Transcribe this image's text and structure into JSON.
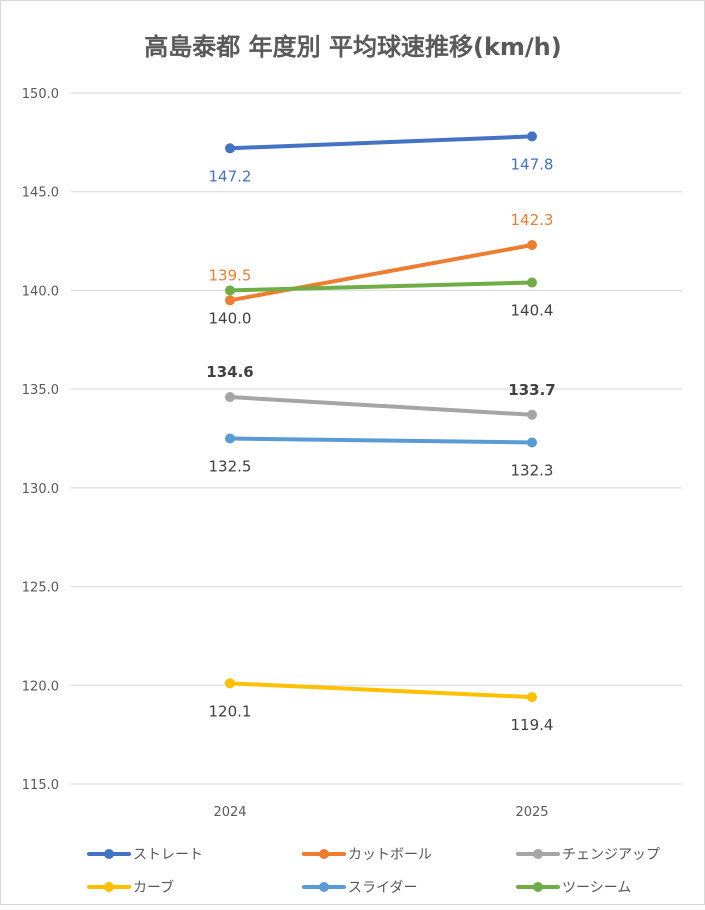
{
  "chart_data": {
    "type": "line",
    "title": "高島泰都 年度別 平均球速推移(km/h)",
    "xlabel": "",
    "ylabel": "",
    "categories": [
      "2024",
      "2025"
    ],
    "ylim": [
      115,
      150
    ],
    "yticks": [
      "150.0",
      "145.0",
      "140.0",
      "135.0",
      "130.0",
      "125.0",
      "120.0",
      "115.0"
    ],
    "ytick_values": [
      150,
      145,
      140,
      135,
      130,
      125,
      120,
      115
    ],
    "grid": true,
    "legend_position": "bottom",
    "series": [
      {
        "name": "ストレート",
        "values": [
          147.2,
          147.8
        ],
        "labels": [
          "147.2",
          "147.8"
        ],
        "color": "#4472C4",
        "label_color": "#4472C4",
        "label_pos": "below",
        "bold": false
      },
      {
        "name": "カットボール",
        "values": [
          139.5,
          142.3
        ],
        "labels": [
          "139.5",
          "142.3"
        ],
        "color": "#ED7D31",
        "label_color": "#ED7D31",
        "label_pos": "above",
        "bold": false
      },
      {
        "name": "チェンジアップ",
        "values": [
          134.6,
          133.7
        ],
        "labels": [
          "134.6",
          "133.7"
        ],
        "color": "#A5A5A5",
        "label_color": "#404040",
        "label_pos": "above",
        "bold": true
      },
      {
        "name": "カーブ",
        "values": [
          120.1,
          119.4
        ],
        "labels": [
          "120.1",
          "119.4"
        ],
        "color": "#FFC000",
        "label_color": "#404040",
        "label_pos": "below",
        "bold": false
      },
      {
        "name": "スライダー",
        "values": [
          132.5,
          132.3
        ],
        "labels": [
          "132.5",
          "132.3"
        ],
        "color": "#5B9BD5",
        "label_color": "#404040",
        "label_pos": "below",
        "bold": false
      },
      {
        "name": "ツーシーム",
        "values": [
          140.0,
          140.4
        ],
        "labels": [
          "140.0",
          "140.4"
        ],
        "color": "#70AD47",
        "label_color": "#404040",
        "label_pos": "below",
        "bold": false
      }
    ]
  }
}
